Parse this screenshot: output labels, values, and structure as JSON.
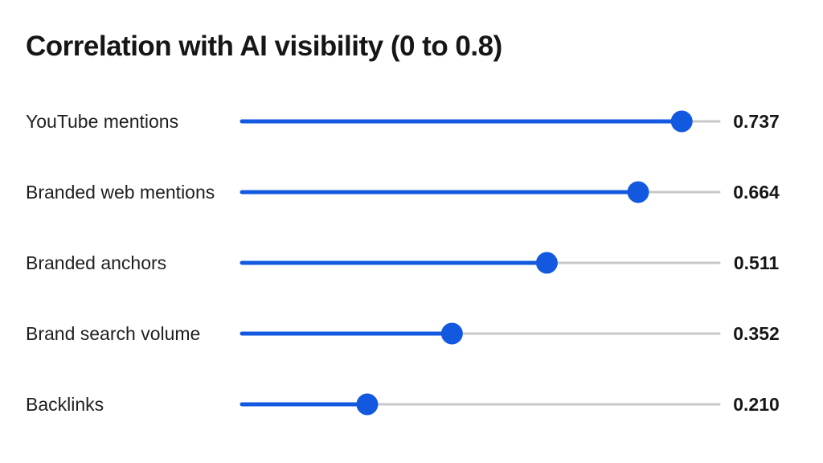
{
  "chart_data": {
    "type": "bar",
    "title": "Correlation with AI visibility (0 to 0.8)",
    "xlim": [
      0,
      0.8
    ],
    "grid": false,
    "legend": "none",
    "categories": [
      "YouTube mentions",
      "Branded web mentions",
      "Branded anchors",
      "Brand search volume",
      "Backlinks"
    ],
    "values": [
      0.737,
      0.664,
      0.511,
      0.352,
      0.21
    ],
    "value_labels": [
      "0.737",
      "0.664",
      "0.511",
      "0.352",
      "0.210"
    ]
  },
  "colors": {
    "fill": "#1259e0",
    "dot": "#1259e0",
    "track": "#c8c8c8",
    "text": "#1f1f1f"
  }
}
